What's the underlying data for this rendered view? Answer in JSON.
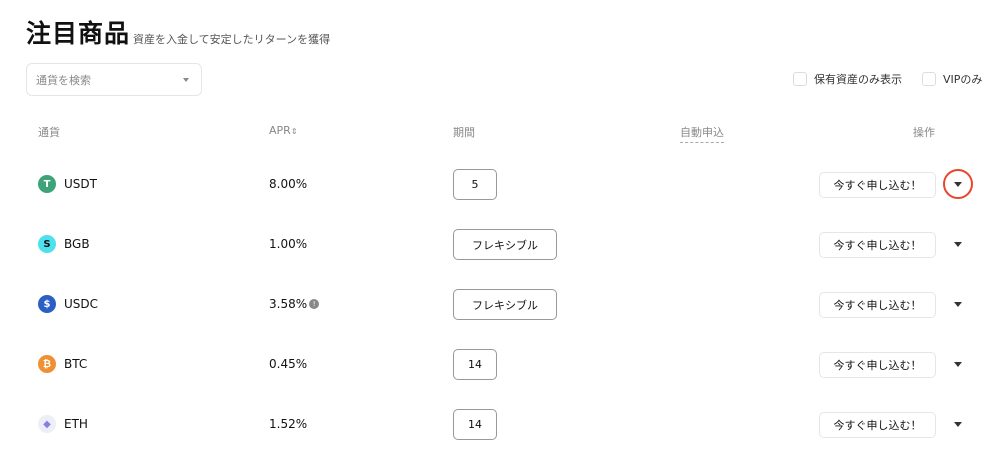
{
  "header": {
    "title": "注目商品",
    "subtitle": "資産を入金して安定したリターンを獲得"
  },
  "search": {
    "placeholder": "通貨を検索"
  },
  "filters": {
    "holdings_only": "保有資産のみ表示",
    "vip_only": "VIPのみ"
  },
  "columns": {
    "currency": "通貨",
    "apr": "APR",
    "period": "期間",
    "auto_subscribe": "自動申込",
    "action": "操作"
  },
  "rows": [
    {
      "symbol": "USDT",
      "apr": "8.00%",
      "period": "5",
      "apply": "今すぐ申し込む！",
      "icon": "tether-icon",
      "color": "#3fa37a"
    },
    {
      "symbol": "BGB",
      "apr": "1.00%",
      "period": "フレキシブル",
      "apply": "今すぐ申し込む！",
      "icon": "bitget-icon",
      "color": "#4fe0ee"
    },
    {
      "symbol": "USDC",
      "apr": "3.58%",
      "period": "フレキシブル",
      "apply": "今すぐ申し込む！",
      "icon": "usdc-icon",
      "color": "#2b5fc6",
      "info": true
    },
    {
      "symbol": "BTC",
      "apr": "0.45%",
      "period": "14",
      "apply": "今すぐ申し込む！",
      "icon": "bitcoin-icon",
      "color": "#ef9133"
    },
    {
      "symbol": "ETH",
      "apr": "1.52%",
      "period": "14",
      "apply": "今すぐ申し込む！",
      "icon": "ethereum-icon",
      "color": "#eceff8"
    }
  ],
  "highlight_color": "#e8452c"
}
